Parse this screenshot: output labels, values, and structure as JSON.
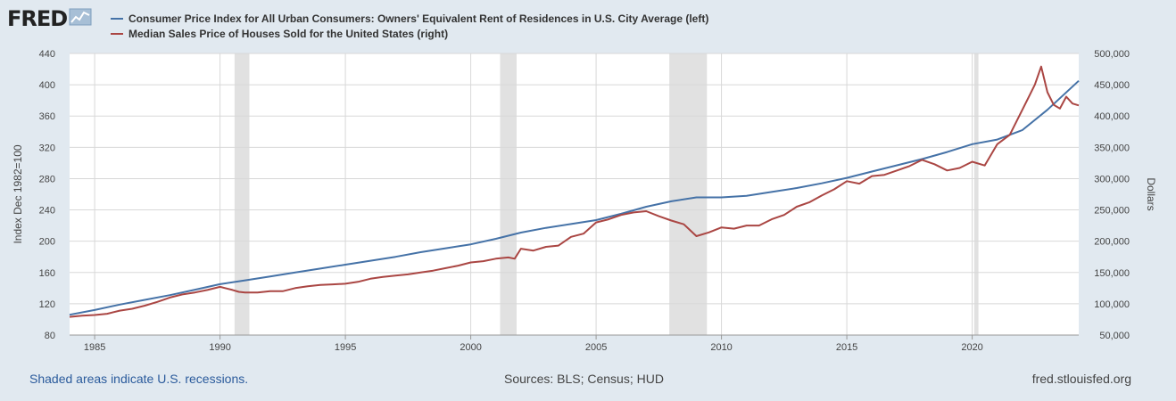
{
  "header": {
    "logo_text": "FRED",
    "logo_icon": "line-chart-icon",
    "legend": [
      {
        "label": "Consumer Price Index for All Urban Consumers: Owners' Equivalent Rent of Residences in U.S. City Average (left)",
        "color": "#4572a7"
      },
      {
        "label": "Median Sales Price of Houses Sold for the United States (right)",
        "color": "#aa4643"
      }
    ]
  },
  "footer": {
    "recessions_note": "Shaded areas indicate U.S. recessions.",
    "sources": "Sources: BLS; Census; HUD",
    "site": "fred.stlouisfed.org"
  },
  "chart_data": {
    "type": "line",
    "xlabel": "",
    "x_ticks": [
      "1985",
      "1990",
      "1995",
      "2000",
      "2005",
      "2010",
      "2015",
      "2020"
    ],
    "x_tick_values": [
      1985,
      1990,
      1995,
      2000,
      2005,
      2010,
      2015,
      2020
    ],
    "xlim": [
      1984.0,
      2024.25
    ],
    "ylabel_left": "Index Dec 1982=100",
    "ylim_left": [
      80,
      440
    ],
    "yticks_left": [
      "80",
      "120",
      "160",
      "200",
      "240",
      "280",
      "320",
      "360",
      "400",
      "440"
    ],
    "ylabel_right": "Dollars",
    "ylim_right": [
      50000,
      500000
    ],
    "yticks_right": [
      "50,000",
      "100,000",
      "150,000",
      "200,000",
      "250,000",
      "300,000",
      "350,000",
      "400,000",
      "450,000",
      "500,000"
    ],
    "grid": true,
    "legend_position": "top",
    "recessions": [
      [
        1990.58,
        1991.17
      ],
      [
        2001.17,
        2001.83
      ],
      [
        2007.92,
        2009.42
      ],
      [
        2020.08,
        2020.25
      ]
    ],
    "series": [
      {
        "name": "Consumer Price Index for All Urban Consumers: Owners' Equivalent Rent of Residences in U.S. City Average (left)",
        "axis": "left",
        "color": "#4572a7",
        "x": [
          1984,
          1985,
          1986,
          1987,
          1988,
          1989,
          1990,
          1991,
          1992,
          1993,
          1994,
          1995,
          1996,
          1997,
          1998,
          1999,
          2000,
          2001,
          2002,
          2003,
          2004,
          2005,
          2006,
          2007,
          2008,
          2009,
          2010,
          2011,
          2012,
          2013,
          2014,
          2015,
          2016,
          2017,
          2018,
          2019,
          2020,
          2021,
          2022,
          2023,
          2024.25
        ],
        "y": [
          106,
          112,
          119,
          125,
          131,
          138,
          145,
          150,
          155,
          160,
          165,
          170,
          175,
          180,
          186,
          191,
          196,
          203,
          211,
          217,
          222,
          227,
          235,
          244,
          251,
          256,
          256,
          258,
          263,
          268,
          274,
          281,
          289,
          297,
          305,
          314,
          324,
          330,
          342,
          368,
          405
        ]
      },
      {
        "name": "Median Sales Price of Houses Sold for the United States (right)",
        "axis": "right",
        "color": "#aa4643",
        "x": [
          1984,
          1984.5,
          1985,
          1985.5,
          1986,
          1986.5,
          1987,
          1987.5,
          1988,
          1988.5,
          1989,
          1989.5,
          1990,
          1990.5,
          1990.75,
          1991,
          1991.5,
          1992,
          1992.5,
          1993,
          1993.5,
          1994,
          1994.5,
          1995,
          1995.5,
          1996,
          1996.5,
          1997,
          1997.5,
          1998,
          1998.5,
          1999,
          1999.5,
          2000,
          2000.5,
          2001,
          2001.5,
          2001.75,
          2002,
          2002.5,
          2003,
          2003.5,
          2004,
          2004.5,
          2005,
          2005.5,
          2006,
          2006.5,
          2007,
          2007.5,
          2008,
          2008.5,
          2009,
          2009.5,
          2010,
          2010.5,
          2011,
          2011.5,
          2012,
          2012.5,
          2013,
          2013.5,
          2014,
          2014.5,
          2015,
          2015.5,
          2016,
          2016.5,
          2017,
          2017.5,
          2018,
          2018.5,
          2019,
          2019.5,
          2020,
          2020.5,
          2021,
          2021.5,
          2022,
          2022.25,
          2022.5,
          2022.75,
          2023,
          2023.25,
          2023.5,
          2023.75,
          2024,
          2024.25
        ],
        "y": [
          79000,
          81000,
          82000,
          84000,
          89000,
          92000,
          97000,
          103000,
          110000,
          115000,
          118000,
          122000,
          127000,
          122000,
          119000,
          118000,
          118000,
          120000,
          120000,
          125000,
          128000,
          130000,
          131000,
          132000,
          135000,
          140000,
          143000,
          145000,
          147000,
          150000,
          153000,
          157000,
          161000,
          166000,
          168000,
          172000,
          174000,
          172000,
          188000,
          185000,
          191000,
          193000,
          207000,
          212000,
          230000,
          235000,
          242000,
          246000,
          248000,
          240000,
          233000,
          227000,
          208000,
          214000,
          222000,
          220000,
          225000,
          225000,
          235000,
          242000,
          255000,
          262000,
          273000,
          283000,
          296000,
          292000,
          304000,
          306000,
          313000,
          320000,
          330000,
          323000,
          313000,
          317000,
          327000,
          321000,
          355000,
          370000,
          410000,
          430000,
          450000,
          479000,
          438000,
          418000,
          412000,
          431000,
          420000,
          417000
        ]
      }
    ]
  }
}
